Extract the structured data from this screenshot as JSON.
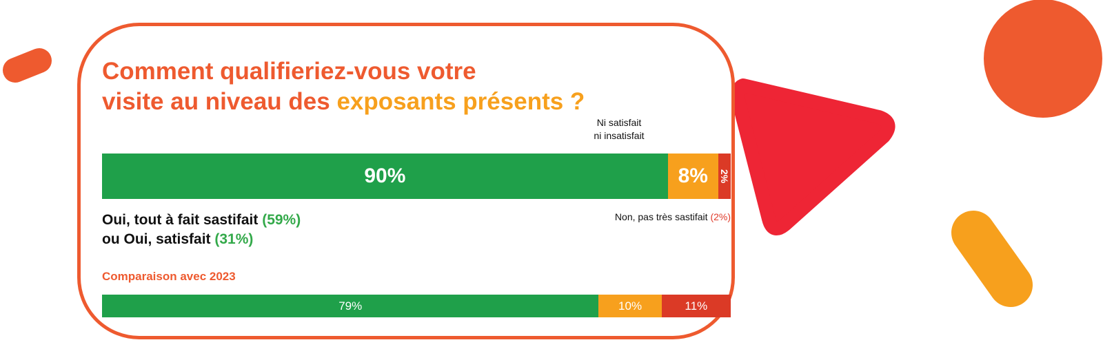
{
  "colors": {
    "accent": "#ee5a2f",
    "highlight": "#f7a01d",
    "green": "#1fa04a",
    "light_green": "#33a94a",
    "orange": "#f7a01d",
    "red": "#db3a26",
    "triangle_red": "#ee2535"
  },
  "title": {
    "line1": "Comment qualifieriez-vous votre",
    "line2_prefix": "visite au niveau des",
    "line2_highlight": "exposants présents ?"
  },
  "labels": {
    "neutral_line1": "Ni satisfait",
    "neutral_line2": "ni insatisfait",
    "positive_line1": "Oui, tout à fait sastifait",
    "positive_pct1": "(59%)",
    "positive_line2": "ou Oui, satisfait",
    "positive_pct2": "(31%)",
    "negative": "Non, pas très sastifait",
    "negative_pct": "(2%)",
    "comparison": "Comparaison avec 2023"
  },
  "chart_data": [
    {
      "type": "bar",
      "stacked": true,
      "orientation": "horizontal",
      "segments": [
        {
          "value": 90,
          "label": "90%",
          "color": "#1fa04a"
        },
        {
          "value": 8,
          "label": "8%",
          "color": "#f7a01d"
        },
        {
          "value": 2,
          "label": "2%",
          "color": "#db3a26"
        }
      ]
    },
    {
      "type": "bar",
      "stacked": true,
      "orientation": "horizontal",
      "segments": [
        {
          "value": 79,
          "label": "79%",
          "color": "#1fa04a"
        },
        {
          "value": 10,
          "label": "10%",
          "color": "#f7a01d"
        },
        {
          "value": 11,
          "label": "11%",
          "color": "#db3a26"
        }
      ]
    }
  ]
}
